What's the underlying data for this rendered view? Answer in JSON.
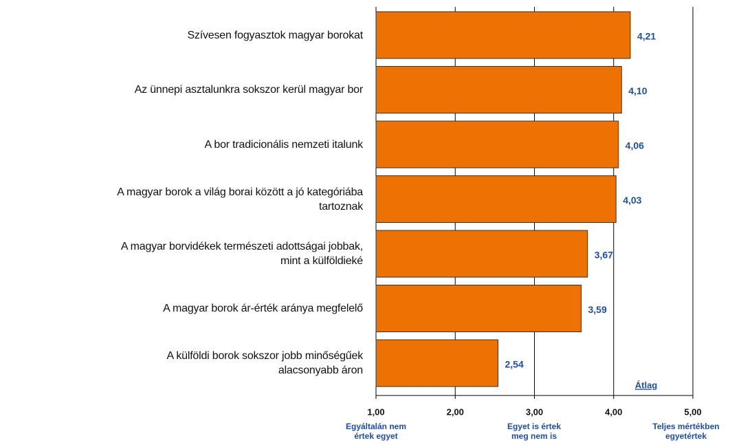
{
  "chart_data": {
    "type": "barh",
    "categories": [
      "Szívesen fogyasztok magyar borokat",
      "Az ünnepi asztalunkra sokszor kerül magyar bor",
      "A bor tradicionális nemzeti italunk",
      "A magyar borok a világ borai között a jó kategóriába\ntartoznak",
      "A magyar borvidékek természeti adottságai jobbak,\nmint a külföldieké",
      "A magyar borok ár-érték aránya megfelelő",
      "A külföldi borok sokszor jobb minőségűek\nalacsonyabb áron"
    ],
    "values": [
      4.21,
      4.1,
      4.06,
      4.03,
      3.67,
      3.59,
      2.54
    ],
    "value_labels": [
      "4,21",
      "4,10",
      "4,06",
      "4,03",
      "3,67",
      "3,59",
      "2,54"
    ],
    "color": "#ee7203",
    "xlim": [
      1,
      5
    ],
    "xticks": [
      {
        "value": 1,
        "label": "1,00"
      },
      {
        "value": 2,
        "label": "2,00"
      },
      {
        "value": 3,
        "label": "3,00"
      },
      {
        "value": 4,
        "label": "4,00"
      },
      {
        "value": 5,
        "label": "5,00"
      }
    ],
    "grid": true,
    "annotation": "Átlag",
    "scale_labels": [
      "Egyáltalán nem\nértek egyet",
      "Egyet is értek\nmeg nem is",
      "Teljes mértékben\negyetértek"
    ]
  }
}
